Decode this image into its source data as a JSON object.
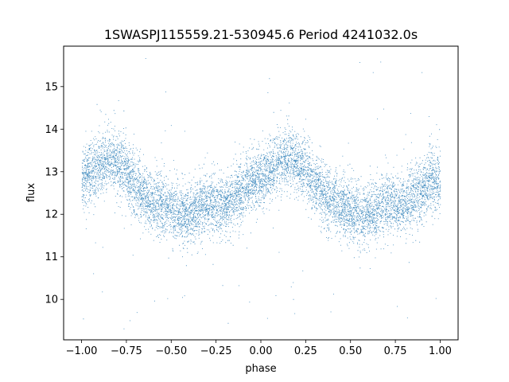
{
  "chart_data": {
    "type": "scatter",
    "title": "1SWASPJ115559.21-530945.6 Period 4241032.0s",
    "xlabel": "phase",
    "ylabel": "flux",
    "xlim": [
      -1.1,
      1.1
    ],
    "ylim": [
      9.05,
      15.95
    ],
    "grid": false,
    "marker_color": "#1f77b4",
    "x_ticks": [
      {
        "value": -1.0,
        "label": "−1.00"
      },
      {
        "value": -0.75,
        "label": "−0.75"
      },
      {
        "value": -0.5,
        "label": "−0.50"
      },
      {
        "value": -0.25,
        "label": "−0.25"
      },
      {
        "value": 0.0,
        "label": "0.00"
      },
      {
        "value": 0.25,
        "label": "0.25"
      },
      {
        "value": 0.5,
        "label": "0.50"
      },
      {
        "value": 0.75,
        "label": "0.75"
      },
      {
        "value": 1.0,
        "label": "1.00"
      }
    ],
    "y_ticks": [
      {
        "value": 10,
        "label": "10"
      },
      {
        "value": 11,
        "label": "11"
      },
      {
        "value": 12,
        "label": "12"
      },
      {
        "value": 13,
        "label": "13"
      },
      {
        "value": 14,
        "label": "14"
      },
      {
        "value": 15,
        "label": "15"
      }
    ],
    "series": [
      {
        "phase_min": -1.0,
        "phase_max": 1.0,
        "trend": {
          "x": [
            -1.0,
            -0.95,
            -0.9,
            -0.85,
            -0.8,
            -0.75,
            -0.7,
            -0.65,
            -0.6,
            -0.55,
            -0.5,
            -0.45,
            -0.4,
            -0.35,
            -0.3,
            -0.25,
            -0.2,
            -0.15,
            -0.1,
            -0.05,
            0.0,
            0.05,
            0.1,
            0.15,
            0.2,
            0.25,
            0.3,
            0.35,
            0.4,
            0.45,
            0.5,
            0.55,
            0.6,
            0.65,
            0.7,
            0.75,
            0.8,
            0.85,
            0.9,
            0.95,
            1.0
          ],
          "flux": [
            12.8,
            13.0,
            13.2,
            13.3,
            13.2,
            13.0,
            12.7,
            12.45,
            12.3,
            12.2,
            12.1,
            12.0,
            12.0,
            12.1,
            12.3,
            12.2,
            12.2,
            12.4,
            12.6,
            12.8,
            12.8,
            13.0,
            13.2,
            13.3,
            13.2,
            13.0,
            12.7,
            12.45,
            12.3,
            12.2,
            12.1,
            12.0,
            12.0,
            12.1,
            12.3,
            12.2,
            12.2,
            12.4,
            12.6,
            12.8,
            12.8
          ]
        },
        "scatter_sd": 0.35,
        "n_points": 9000,
        "outlier_fraction": 0.01,
        "flux_range": [
          9.3,
          15.7
        ]
      }
    ]
  }
}
